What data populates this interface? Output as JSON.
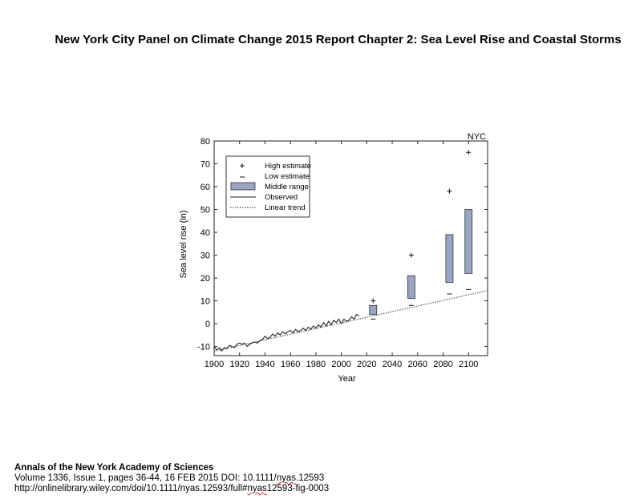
{
  "page": {
    "title": "New York City Panel on Climate Change 2015 Report Chapter 2: Sea Level Rise and Coastal Storms"
  },
  "caption": {
    "journal": "Annals of the New York Academy of Sciences",
    "citation_prefix": "Volume 1336, Issue 1, pages 36-44, 16 FEB 2015 DOI: 10.1111/",
    "citation_underlined": "nyas",
    "citation_suffix": ".12593",
    "url_prefix": "http://onlinelibrary.wiley.com/doi/10.1111/nyas.12593/full#",
    "url_underlined": "nyas",
    "url_suffix": "12593-fig-0003"
  },
  "colors": {
    "box_fill": "#9aa4c3",
    "box_stroke": "#333333",
    "observed": "#222222",
    "trend": "#555555"
  },
  "chart_data": {
    "type": "box-range",
    "region_label": "NYC",
    "xlabel": "Year",
    "ylabel": "Sea level rise (in)",
    "xlim": [
      1900,
      2115
    ],
    "ylim": [
      -14,
      80
    ],
    "x_ticks": [
      1900,
      1920,
      1940,
      1960,
      1980,
      2000,
      2020,
      2040,
      2060,
      2080,
      2100
    ],
    "y_ticks": [
      -10,
      0,
      10,
      20,
      30,
      40,
      50,
      60,
      70,
      80
    ],
    "legend": {
      "position": "top-left",
      "high": "High estimate",
      "low": "Low estimate",
      "middle": "Middle range",
      "observed": "Observed",
      "trend": "Linear trend"
    },
    "projections": [
      {
        "year": 2025,
        "low": 2,
        "mid_low": 4,
        "mid_high": 8,
        "high": 10
      },
      {
        "year": 2055,
        "low": 8,
        "mid_low": 11,
        "mid_high": 21,
        "high": 30
      },
      {
        "year": 2085,
        "low": 13,
        "mid_low": 18,
        "mid_high": 39,
        "high": 58
      },
      {
        "year": 2100,
        "low": 15,
        "mid_low": 22,
        "mid_high": 50,
        "high": 75
      }
    ],
    "linear_trend": {
      "x": [
        1900,
        2115
      ],
      "y": [
        -12,
        14.5
      ]
    },
    "observed": {
      "years": [
        1900,
        1902,
        1904,
        1906,
        1908,
        1910,
        1912,
        1914,
        1916,
        1918,
        1920,
        1922,
        1924,
        1926,
        1928,
        1930,
        1932,
        1934,
        1936,
        1938,
        1940,
        1942,
        1944,
        1946,
        1948,
        1950,
        1952,
        1954,
        1956,
        1958,
        1960,
        1962,
        1964,
        1966,
        1968,
        1970,
        1972,
        1974,
        1976,
        1978,
        1980,
        1982,
        1984,
        1986,
        1988,
        1990,
        1992,
        1994,
        1996,
        1998,
        2000,
        2002,
        2004,
        2006,
        2008,
        2010,
        2012,
        2014
      ],
      "values": [
        -10,
        -11.5,
        -10.5,
        -12,
        -10.5,
        -11,
        -9.5,
        -10,
        -10.5,
        -9,
        -8.5,
        -9,
        -8.5,
        -10,
        -9,
        -8.5,
        -8,
        -8.5,
        -7.5,
        -7,
        -5.5,
        -6.5,
        -6,
        -4.5,
        -5.5,
        -4,
        -5,
        -3.5,
        -4.5,
        -3.5,
        -3,
        -4,
        -2.5,
        -3.5,
        -3,
        -2,
        -3,
        -1.5,
        -2.5,
        -1,
        -2,
        -0.5,
        -1.5,
        0.5,
        -1,
        1,
        -0.5,
        1.5,
        0.5,
        2,
        0,
        2,
        1,
        1.5,
        3,
        2,
        4,
        3.5
      ]
    }
  }
}
